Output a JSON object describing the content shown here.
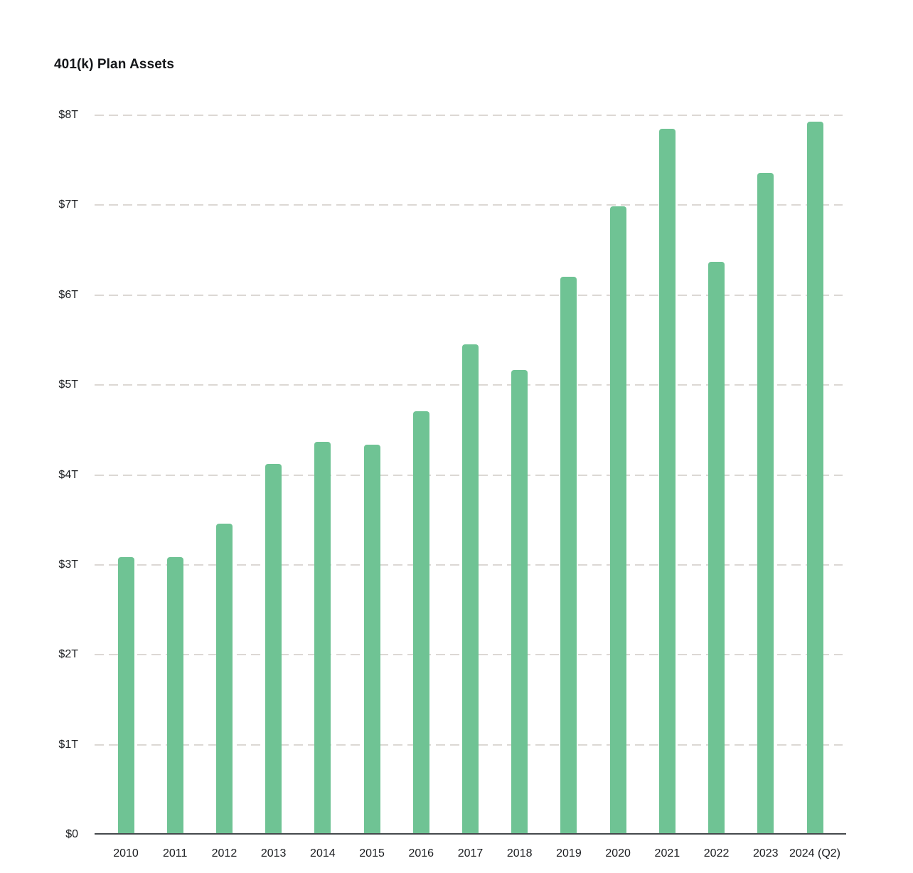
{
  "title": "401(k) Plan Assets",
  "theme": {
    "background": "#ffffff",
    "bar_color": "#6fc394",
    "gridline_color": "#dcd8d4",
    "axis_line_color": "#45494c",
    "text_color": "#1b1d20",
    "title_color": "#141619"
  },
  "chart_data": {
    "type": "bar",
    "title": "401(k) Plan Assets",
    "xlabel": "",
    "ylabel": "",
    "unit": "trillions of USD",
    "categories": [
      "2010",
      "2011",
      "2012",
      "2013",
      "2014",
      "2015",
      "2016",
      "2017",
      "2018",
      "2019",
      "2020",
      "2021",
      "2022",
      "2023",
      "2024 (Q2)"
    ],
    "values": [
      3.09,
      3.09,
      3.46,
      4.12,
      4.37,
      4.34,
      4.71,
      5.45,
      5.17,
      6.2,
      6.99,
      7.85,
      6.37,
      7.36,
      7.93
    ],
    "ylim": [
      0,
      8
    ],
    "yticks": [
      {
        "value": 0,
        "label": "$0"
      },
      {
        "value": 1,
        "label": "$1T"
      },
      {
        "value": 2,
        "label": "$2T"
      },
      {
        "value": 3,
        "label": "$3T"
      },
      {
        "value": 4,
        "label": "$4T"
      },
      {
        "value": 5,
        "label": "$5T"
      },
      {
        "value": 6,
        "label": "$6T"
      },
      {
        "value": 7,
        "label": "$7T"
      },
      {
        "value": 8,
        "label": "$8T"
      }
    ],
    "grid": "horizontal-dashed",
    "legend": "none",
    "bar_color": "#6fc394"
  }
}
